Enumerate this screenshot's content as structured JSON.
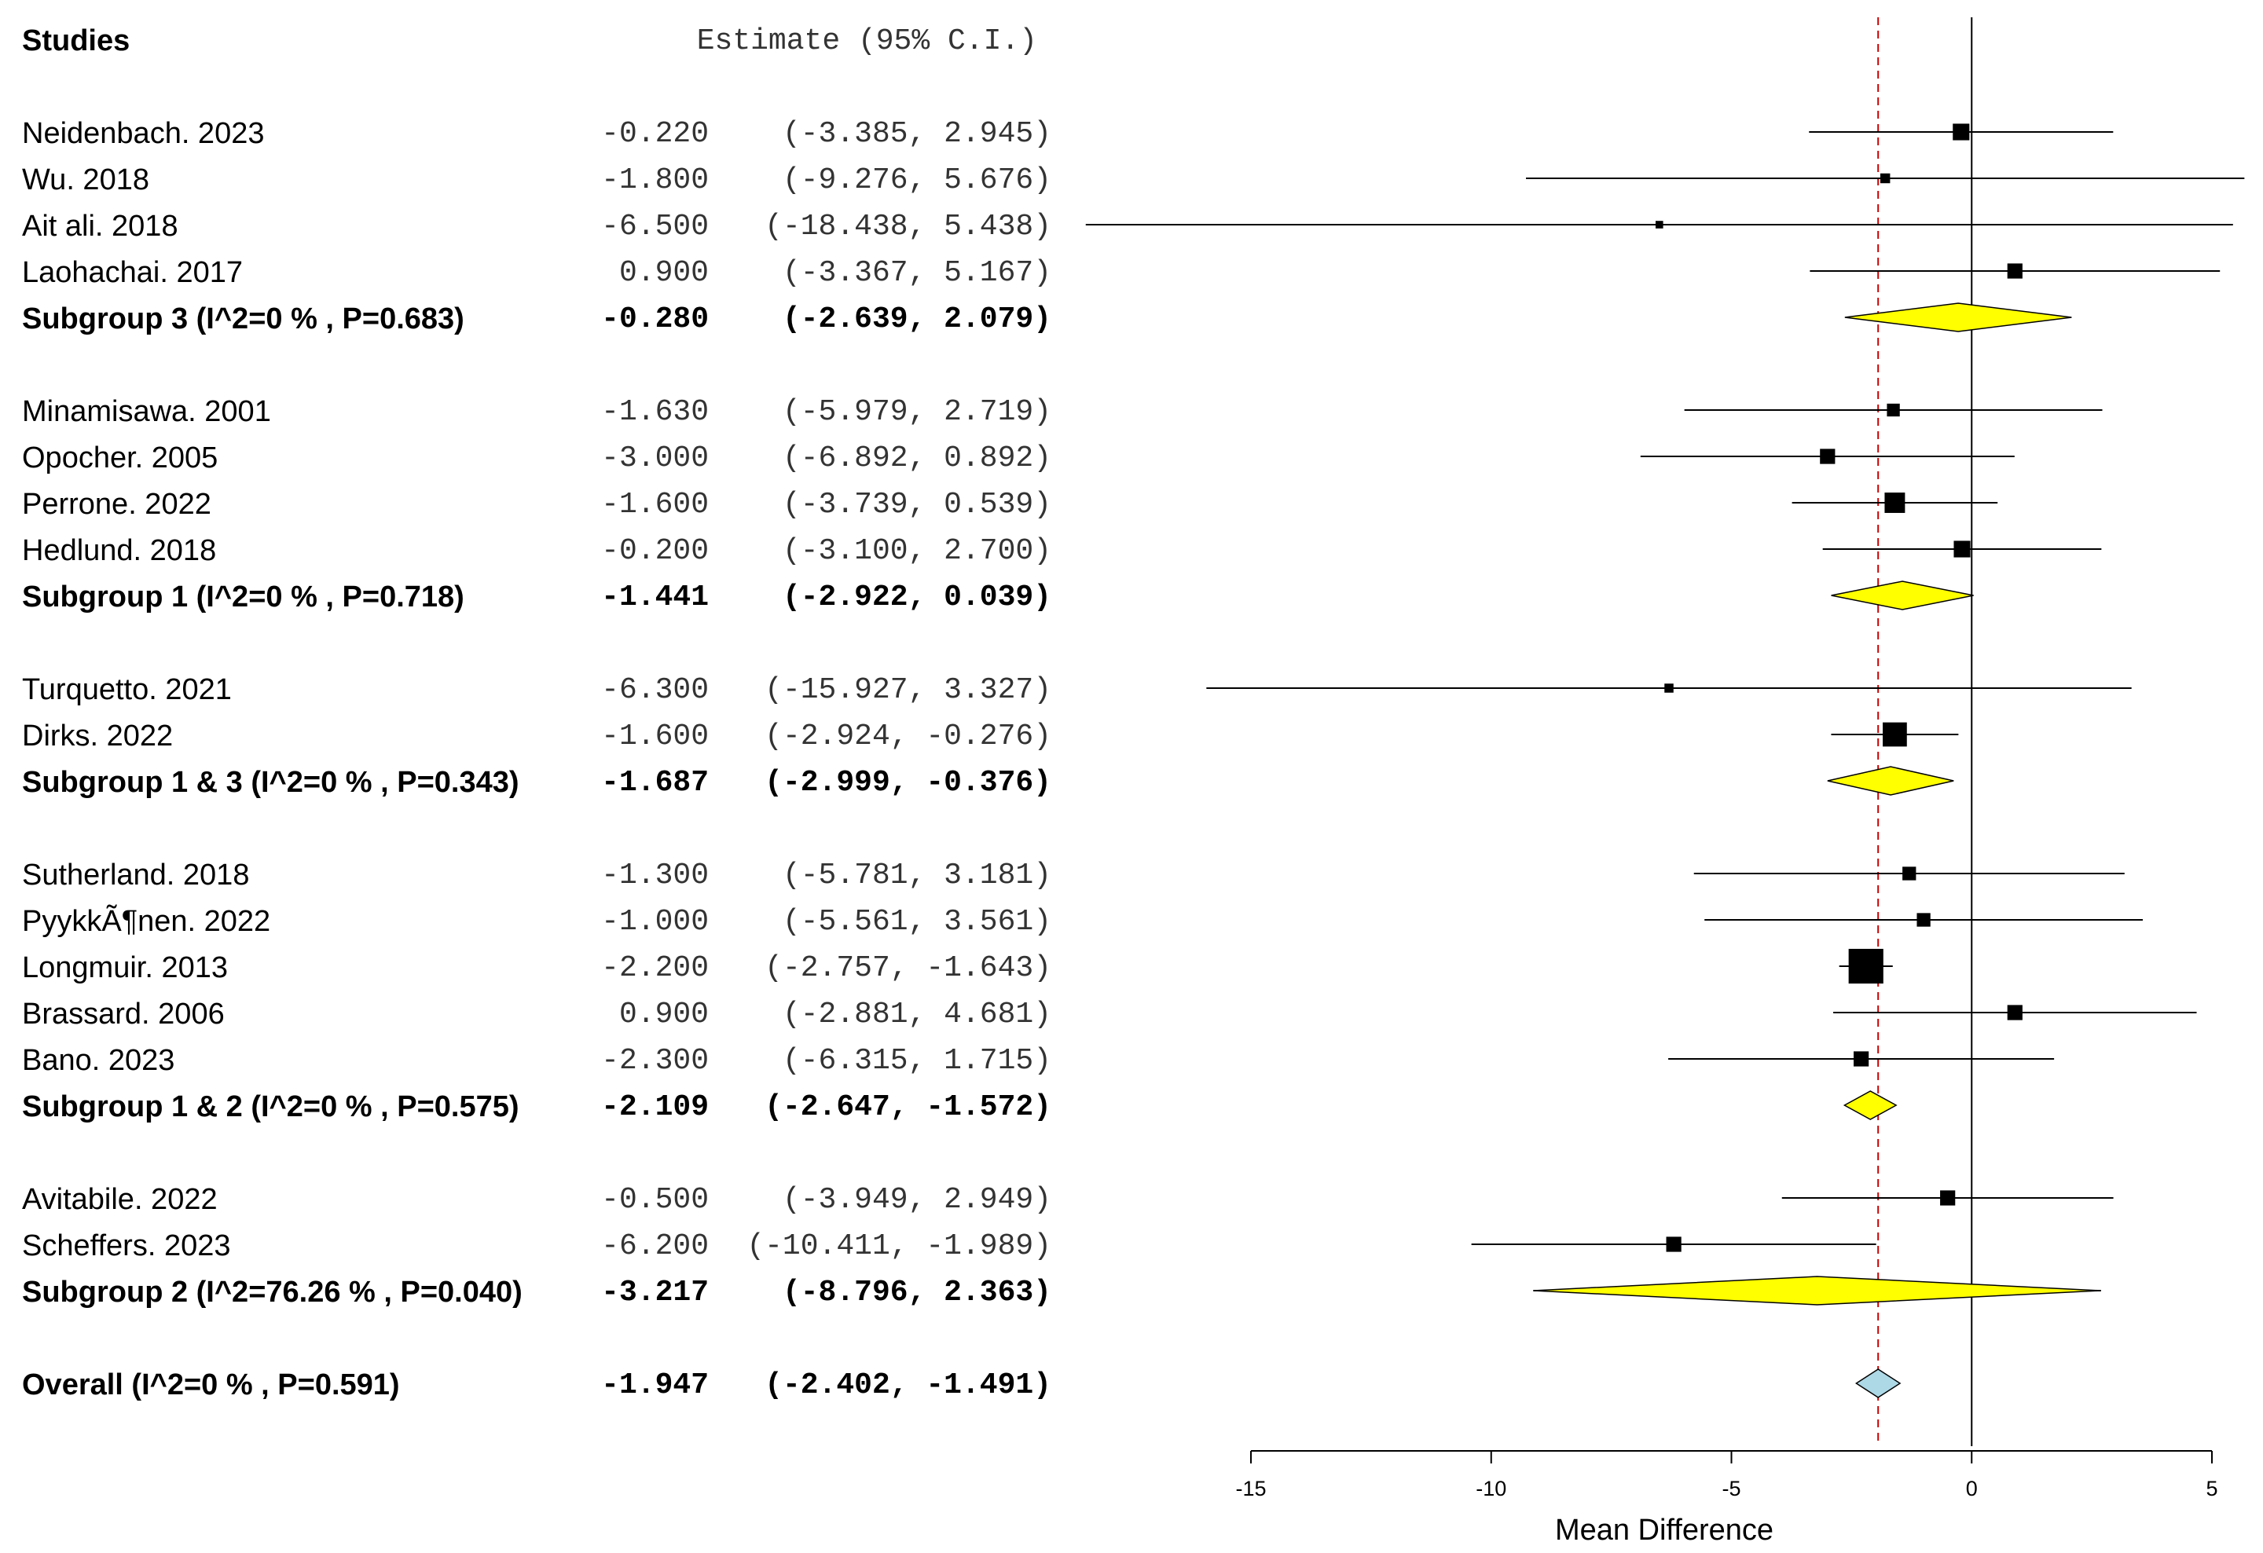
{
  "chart_data": {
    "type": "forest",
    "header": {
      "studies": "Studies",
      "estimate": "Estimate (95% C.I.)"
    },
    "xlabel": "Mean Difference",
    "xlim": [
      -15,
      5
    ],
    "xticks": [
      -15,
      -10,
      -5,
      0,
      5
    ],
    "xtick_labels": [
      "-15",
      "-10",
      "-5",
      "0",
      "5"
    ],
    "reference_line": -1.947,
    "null_line": 0,
    "colors": {
      "subgroup_diamond": "#ffff00",
      "overall_diamond": "#add8e6",
      "reference_line": "#cc0000"
    },
    "rows": [
      {
        "kind": "study",
        "label": "Neidenbach. 2023",
        "est": -0.22,
        "lo": -3.385,
        "hi": 2.945,
        "est_text": "-0.220",
        "ci_text": "(-3.385,  2.945)",
        "box": 1.1
      },
      {
        "kind": "study",
        "label": "Wu. 2018",
        "est": -1.8,
        "lo": -9.276,
        "hi": 5.676,
        "est_text": "-1.800",
        "ci_text": "(-9.276,  5.676)",
        "box": 0.65
      },
      {
        "kind": "study",
        "label": "Ait ali. 2018",
        "est": -6.5,
        "lo": -18.438,
        "hi": 5.438,
        "est_text": "-6.500",
        "ci_text": "(-18.438,  5.438)",
        "box": 0.5
      },
      {
        "kind": "study",
        "label": "Laohachai. 2017",
        "est": 0.9,
        "lo": -3.367,
        "hi": 5.167,
        "est_text": " 0.900",
        "ci_text": "(-3.367,  5.167)",
        "box": 1.0
      },
      {
        "kind": "subgroup",
        "label": "Subgroup 3 (I^2=0 % , P=0.683)",
        "est": -0.28,
        "lo": -2.639,
        "hi": 2.079,
        "est_text": "-0.280",
        "ci_text": "(-2.639,  2.079)",
        "wide_lo": -2.639,
        "wide_hi": 2.079
      },
      {
        "kind": "blank"
      },
      {
        "kind": "study",
        "label": "Minamisawa. 2001",
        "est": -1.63,
        "lo": -5.979,
        "hi": 2.719,
        "est_text": "-1.630",
        "ci_text": "(-5.979,  2.719)",
        "box": 0.85
      },
      {
        "kind": "study",
        "label": "Opocher. 2005",
        "est": -3.0,
        "lo": -6.892,
        "hi": 0.892,
        "est_text": "-3.000",
        "ci_text": "(-6.892,  0.892)",
        "box": 1.0
      },
      {
        "kind": "study",
        "label": "Perrone. 2022",
        "est": -1.6,
        "lo": -3.739,
        "hi": 0.539,
        "est_text": "-1.600",
        "ci_text": "(-3.739,  0.539)",
        "box": 1.35
      },
      {
        "kind": "study",
        "label": "Hedlund. 2018",
        "est": -0.2,
        "lo": -3.1,
        "hi": 2.7,
        "est_text": "-0.200",
        "ci_text": "(-3.100,  2.700)",
        "box": 1.1
      },
      {
        "kind": "subgroup",
        "label": "Subgroup 1 (I^2=0 % , P=0.718)",
        "est": -1.441,
        "lo": -2.922,
        "hi": 0.039,
        "est_text": "-1.441",
        "ci_text": "(-2.922,  0.039)",
        "wide_lo": -2.922,
        "wide_hi": 0.039
      },
      {
        "kind": "blank"
      },
      {
        "kind": "study",
        "label": "Turquetto. 2021",
        "est": -6.3,
        "lo": -15.927,
        "hi": 3.327,
        "est_text": "-6.300",
        "ci_text": "(-15.927,  3.327)",
        "box": 0.6
      },
      {
        "kind": "study",
        "label": "Dirks. 2022",
        "est": -1.6,
        "lo": -2.924,
        "hi": -0.276,
        "est_text": "-1.600",
        "ci_text": "(-2.924, -0.276)",
        "box": 1.6
      },
      {
        "kind": "subgroup",
        "label": "Subgroup 1 & 3 (I^2=0 % , P=0.343)",
        "est": -1.687,
        "lo": -2.999,
        "hi": -0.376,
        "est_text": "-1.687",
        "ci_text": "(-2.999, -0.376)",
        "wide_lo": -2.999,
        "wide_hi": -0.376
      },
      {
        "kind": "blank"
      },
      {
        "kind": "study",
        "label": "Sutherland. 2018",
        "est": -1.3,
        "lo": -5.781,
        "hi": 3.181,
        "est_text": "-1.300",
        "ci_text": "(-5.781,  3.181)",
        "box": 0.9
      },
      {
        "kind": "study",
        "label": "PyykkÃ¶nen. 2022",
        "est": -1.0,
        "lo": -5.561,
        "hi": 3.561,
        "est_text": "-1.000",
        "ci_text": "(-5.561,  3.561)",
        "box": 0.9
      },
      {
        "kind": "study",
        "label": "Longmuir. 2013",
        "est": -2.2,
        "lo": -2.757,
        "hi": -1.643,
        "est_text": "-2.200",
        "ci_text": "(-2.757, -1.643)",
        "box": 2.3
      },
      {
        "kind": "study",
        "label": "Brassard. 2006",
        "est": 0.9,
        "lo": -2.881,
        "hi": 4.681,
        "est_text": " 0.900",
        "ci_text": "(-2.881,  4.681)",
        "box": 1.0
      },
      {
        "kind": "study",
        "label": "Bano. 2023",
        "est": -2.3,
        "lo": -6.315,
        "hi": 1.715,
        "est_text": "-2.300",
        "ci_text": "(-6.315,  1.715)",
        "box": 1.0
      },
      {
        "kind": "subgroup",
        "label": "Subgroup 1 & 2 (I^2=0 % , P=0.575)",
        "est": -2.109,
        "lo": -2.647,
        "hi": -1.572,
        "est_text": "-2.109",
        "ci_text": "(-2.647, -1.572)",
        "wide_lo": -2.647,
        "wide_hi": -1.572
      },
      {
        "kind": "blank"
      },
      {
        "kind": "study",
        "label": "Avitabile. 2022",
        "est": -0.5,
        "lo": -3.949,
        "hi": 2.949,
        "est_text": "-0.500",
        "ci_text": "(-3.949,  2.949)",
        "box": 1.0
      },
      {
        "kind": "study",
        "label": "Scheffers. 2023",
        "est": -6.2,
        "lo": -10.411,
        "hi": -1.989,
        "est_text": "-6.200",
        "ci_text": "(-10.411, -1.989)",
        "box": 1.0
      },
      {
        "kind": "subgroup",
        "label": "Subgroup 2 (I^2=76.26 % , P=0.040)",
        "est": -3.217,
        "lo": -8.796,
        "hi": 2.363,
        "est_text": "-3.217",
        "ci_text": "(-8.796,  2.363)",
        "wide_lo": -8.796,
        "wide_hi": 2.363,
        "inner_lo": -6.2,
        "inner_hi": -0.5
      },
      {
        "kind": "blank"
      },
      {
        "kind": "overall",
        "label": "Overall (I^2=0 % , P=0.591)",
        "est": -1.947,
        "lo": -2.402,
        "hi": -1.491,
        "est_text": "-1.947",
        "ci_text": "(-2.402, -1.491)",
        "wide_lo": -2.402,
        "wide_hi": -1.491
      }
    ]
  }
}
